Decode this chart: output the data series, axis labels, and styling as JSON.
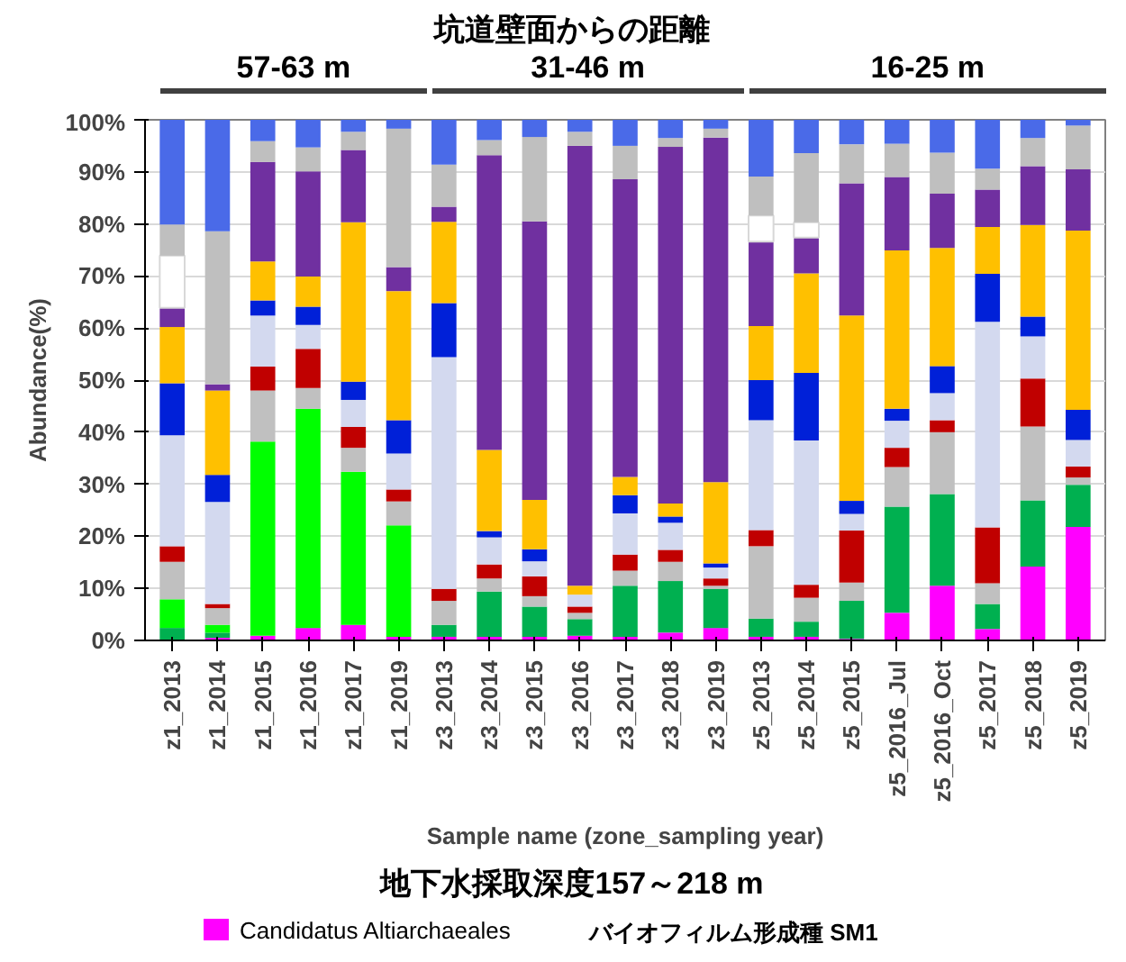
{
  "chart_data": {
    "type": "bar",
    "stacked": true,
    "title": "坑道壁面からの距離",
    "xlabel": "Sample name (zone_sampling year)",
    "ylabel": "Abundance(%)",
    "categories": [
      "z1_2013",
      "z1_2014",
      "z1_2015",
      "z1_2016",
      "z1_2017",
      "z1_2019",
      "z3_2013",
      "z3_2014",
      "z3_2015",
      "z3_2016",
      "z3_2017",
      "z3_2018",
      "z3_2019",
      "z5_2013",
      "z5_2014",
      "z5_2015",
      "z5_2016_Jul",
      "z5_2016_Oct",
      "z5_2017",
      "z5_2018",
      "z5_2019"
    ],
    "ylim": [
      0,
      100
    ],
    "yticks": [
      {
        "value": 0,
        "label": "0%"
      },
      {
        "value": 10,
        "label": "10%"
      },
      {
        "value": 20,
        "label": "20%"
      },
      {
        "value": 30,
        "label": "30%"
      },
      {
        "value": 40,
        "label": "40%"
      },
      {
        "value": 50,
        "label": "50%"
      },
      {
        "value": 60,
        "label": "60%"
      },
      {
        "value": 70,
        "label": "70%"
      },
      {
        "value": 80,
        "label": "80%"
      },
      {
        "value": 90,
        "label": "90%"
      },
      {
        "value": 100,
        "label": "100%"
      }
    ],
    "grid": "y",
    "legend": "bottom",
    "series": [
      {
        "name": "Candidatus Altiarchaeales",
        "color": "#ff00ff",
        "values": [
          0,
          0.5,
          0.9,
          2.4,
          3,
          0.7,
          0.7,
          0.7,
          0.7,
          0.9,
          0.7,
          1.5,
          2.4,
          0.7,
          0.7,
          0.3,
          5.3,
          10.5,
          2.2,
          14.2,
          21.8
        ]
      },
      {
        "color": "#00b050",
        "values": [
          2.4,
          1,
          0,
          0,
          0,
          0,
          2.3,
          8.7,
          5.8,
          3.2,
          9.8,
          9.9,
          7.5,
          3.5,
          2.9,
          7.3,
          20.4,
          17.6,
          4.8,
          12.7,
          8.1
        ]
      },
      {
        "color": "#00ff00",
        "values": [
          5.5,
          1.5,
          37.3,
          42.1,
          29.4,
          21.4,
          0,
          0,
          0,
          0,
          0,
          0,
          0,
          0,
          0,
          0,
          0,
          0,
          0,
          0,
          0
        ]
      },
      {
        "color": "#c0c0c0",
        "values": [
          7.2,
          3.2,
          9.8,
          4,
          4.6,
          4.6,
          4.6,
          2.5,
          2,
          1.2,
          2.9,
          3.7,
          0.6,
          13.9,
          4.6,
          3.5,
          7.6,
          11.9,
          4,
          14.2,
          1.4
        ]
      },
      {
        "color": "#c00000",
        "values": [
          3,
          0.8,
          4.6,
          7.5,
          4,
          2.3,
          2.3,
          2.7,
          3.8,
          1.2,
          3.1,
          2.3,
          1.4,
          3.1,
          2.5,
          10,
          3.7,
          2.3,
          10.7,
          9.2,
          2.1
        ]
      },
      {
        "color": "#d3d9ef",
        "values": [
          21.3,
          19.6,
          9.8,
          4.6,
          5.2,
          6.9,
          44.5,
          5.2,
          2.9,
          2.3,
          7.9,
          5.2,
          2.1,
          21.1,
          27.7,
          3.2,
          5.2,
          5.2,
          39.5,
          8.1,
          5.1
        ]
      },
      {
        "color": "#0020d8",
        "values": [
          10,
          5.2,
          2.9,
          3.5,
          3.5,
          6.4,
          10.4,
          1.2,
          2.3,
          0,
          3.5,
          1.2,
          0.8,
          7.7,
          13,
          2.5,
          2.3,
          5.2,
          9.2,
          3.8,
          5.8
        ]
      },
      {
        "color": "#ffc000",
        "values": [
          10.8,
          16.2,
          7.5,
          5.8,
          30.6,
          24.8,
          15.6,
          15.6,
          9.5,
          1.7,
          3.5,
          2.5,
          15.6,
          10.4,
          19.1,
          35.6,
          30.4,
          22.7,
          9,
          17.6,
          34.4
        ]
      },
      {
        "color": "#7030a0",
        "values": [
          3.7,
          1.2,
          19.1,
          20.2,
          13.9,
          4.6,
          2.9,
          56.6,
          53.5,
          84.5,
          57.2,
          68.5,
          66.2,
          16.2,
          6.9,
          25.4,
          14.1,
          10.4,
          7.2,
          11.3,
          11.8
        ]
      },
      {
        "color": "#ffffff",
        "values": [
          10,
          0,
          0,
          0,
          0,
          0,
          0,
          0,
          0,
          0,
          0,
          0,
          0,
          5,
          2.9,
          0,
          0,
          0,
          0,
          0,
          0
        ]
      },
      {
        "color": "#bfbfbf",
        "values": [
          6,
          29.4,
          4,
          4.6,
          3.5,
          26.6,
          8.1,
          2.9,
          16.2,
          2.7,
          6.4,
          1.7,
          1.7,
          7.5,
          13.3,
          7.5,
          6.4,
          7.9,
          4,
          5.4,
          8.4
        ]
      },
      {
        "color": "#4a6ae8",
        "values": [
          20.1,
          21.4,
          4.1,
          5.3,
          2.3,
          1.7,
          8.6,
          3.9,
          3.3,
          2.3,
          5,
          3.5,
          1.7,
          10.9,
          6.4,
          4.7,
          4.6,
          6.3,
          9.4,
          3.5,
          1.1
        ]
      }
    ],
    "annotations": [
      "57-63 m",
      "31-46 m",
      "16-25 m",
      "地下水採取深度157～218 m",
      "バイオフィルム形成種 SM1"
    ]
  }
}
